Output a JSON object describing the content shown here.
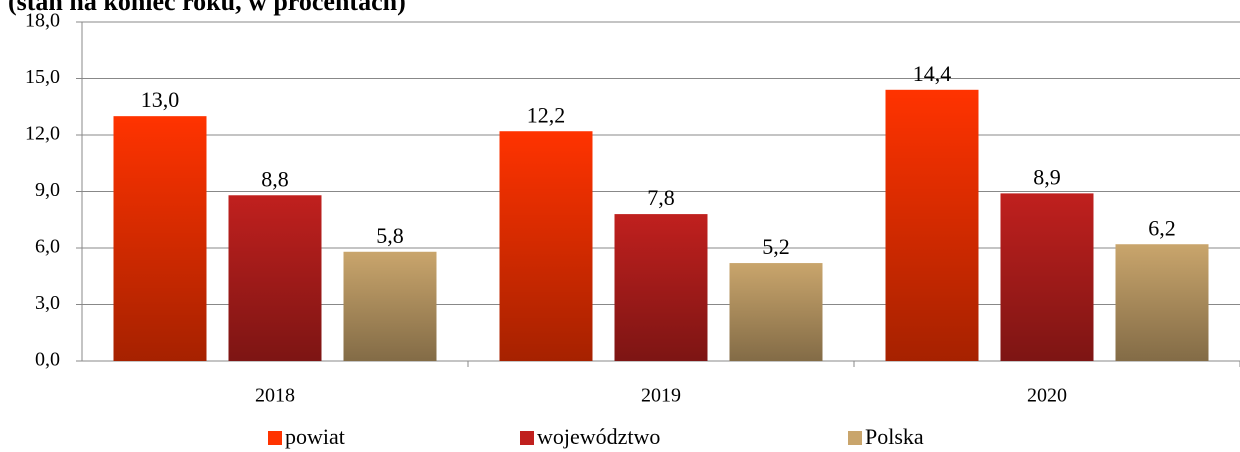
{
  "chart_data": {
    "type": "bar",
    "title": "(stan na koniec roku, w procentach)",
    "categories": [
      "2018",
      "2019",
      "2020"
    ],
    "series": [
      {
        "name": "powiat",
        "color": "#ff3300",
        "values": [
          13.0,
          12.2,
          14.4
        ],
        "value_labels": [
          "13,0",
          "12,2",
          "14,4"
        ]
      },
      {
        "name": "województwo",
        "color": "#c0201e",
        "values": [
          8.8,
          7.8,
          8.9
        ],
        "value_labels": [
          "8,8",
          "7,8",
          "8,9"
        ]
      },
      {
        "name": "Polska",
        "color": "#c9a56c",
        "values": [
          5.8,
          5.2,
          6.2
        ],
        "value_labels": [
          "5,8",
          "5,2",
          "6,2"
        ]
      }
    ],
    "ylim": [
      0,
      18
    ],
    "yticks": [
      {
        "value": 0,
        "label": "0,0"
      },
      {
        "value": 3,
        "label": "3,0"
      },
      {
        "value": 6,
        "label": "6,0"
      },
      {
        "value": 9,
        "label": "9,0"
      },
      {
        "value": 12,
        "label": "12,0"
      },
      {
        "value": 15,
        "label": "15,0"
      },
      {
        "value": 18,
        "label": "18,0"
      }
    ],
    "grid": true,
    "legend": "bottom"
  }
}
